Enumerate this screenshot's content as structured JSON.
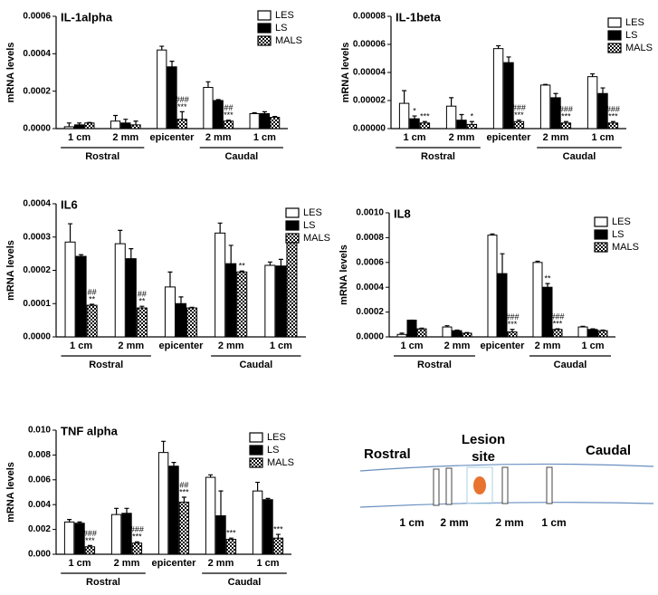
{
  "chart_data": [
    {
      "type": "bar",
      "title": "IL-1alpha",
      "y_label": "mRNA levels",
      "categories": [
        "1 cm",
        "2 mm",
        "epicenter",
        "2 mm",
        "1 cm"
      ],
      "x_groups": [
        "Rostral",
        "Caudal"
      ],
      "ylim": [
        0,
        0.0006
      ],
      "yticks": [
        {
          "value": 0,
          "label": "0.0000"
        },
        {
          "value": 0.0002,
          "label": "0.0002"
        },
        {
          "value": 0.0004,
          "label": "0.0004"
        },
        {
          "value": 0.0006,
          "label": "0.0006"
        }
      ],
      "legend": "upper right",
      "series": [
        {
          "name": "LES",
          "color": "#ffffff",
          "values": [
            1e-05,
            4e-05,
            0.00042,
            0.00022,
            8e-05
          ],
          "errors": [
            2e-05,
            3e-05,
            2e-05,
            3e-05,
            5e-06
          ],
          "annotations": [
            null,
            null,
            null,
            null,
            null
          ]
        },
        {
          "name": "LS",
          "color": "#000000",
          "values": [
            2e-05,
            3e-05,
            0.00033,
            0.00015,
            8e-05
          ],
          "errors": [
            1e-05,
            2e-05,
            3e-05,
            5e-06,
            1e-05
          ],
          "annotations": [
            null,
            null,
            null,
            null,
            null
          ]
        },
        {
          "name": "MALS",
          "color": "#000000",
          "pattern": "checker",
          "values": [
            3e-05,
            2e-05,
            5e-05,
            4e-05,
            6e-05
          ],
          "errors": [
            3e-06,
            2e-05,
            4e-05,
            5e-06,
            5e-06
          ],
          "annotations": [
            null,
            null,
            [
              "###",
              "***"
            ],
            [
              "##",
              "***"
            ],
            null
          ]
        }
      ]
    },
    {
      "type": "bar",
      "title": "IL-1beta",
      "y_label": "mRNA levels",
      "categories": [
        "1 cm",
        "2 mm",
        "epicenter",
        "2 mm",
        "1 cm"
      ],
      "x_groups": [
        "Rostral",
        "Caudal"
      ],
      "ylim": [
        0,
        8e-05
      ],
      "yticks": [
        {
          "value": 0,
          "label": "0.00000"
        },
        {
          "value": 2e-05,
          "label": "0.00002"
        },
        {
          "value": 4e-05,
          "label": "0.00004"
        },
        {
          "value": 6e-05,
          "label": "0.00006"
        },
        {
          "value": 8e-05,
          "label": "0.00008"
        }
      ],
      "legend": "upper right",
      "series": [
        {
          "name": "LES",
          "color": "#ffffff",
          "values": [
            1.8e-05,
            1.6e-05,
            5.7e-05,
            3.1e-05,
            3.7e-05
          ],
          "errors": [
            9e-06,
            6e-06,
            2e-06,
            5e-07,
            2e-06
          ],
          "annotations": [
            null,
            null,
            null,
            null,
            null
          ]
        },
        {
          "name": "LS",
          "color": "#000000",
          "values": [
            7e-06,
            6e-06,
            4.7e-05,
            2.2e-05,
            2.5e-05
          ],
          "errors": [
            2e-06,
            4e-06,
            4e-06,
            3e-06,
            4e-06
          ],
          "annotations": [
            "*",
            null,
            null,
            null,
            null
          ]
        },
        {
          "name": "MALS",
          "color": "#000000",
          "pattern": "checker",
          "values": [
            4e-06,
            3e-06,
            5e-06,
            4e-06,
            4e-06
          ],
          "errors": [
            1e-06,
            2e-06,
            1e-06,
            1e-06,
            1e-06
          ],
          "annotations": [
            "***",
            "*",
            [
              "###",
              "***"
            ],
            [
              "###",
              "***"
            ],
            [
              "###",
              "***"
            ]
          ]
        }
      ]
    },
    {
      "type": "bar",
      "title": "IL6",
      "y_label": "mRNA levels",
      "categories": [
        "1 cm",
        "2 mm",
        "epicenter",
        "2 mm",
        "1 cm"
      ],
      "x_groups": [
        "Rostral",
        "Caudal"
      ],
      "ylim": [
        0,
        0.0004
      ],
      "yticks": [
        {
          "value": 0,
          "label": "0.0000"
        },
        {
          "value": 0.0001,
          "label": "0.0001"
        },
        {
          "value": 0.0002,
          "label": "0.0002"
        },
        {
          "value": 0.0003,
          "label": "0.0003"
        },
        {
          "value": 0.0004,
          "label": "0.0004"
        }
      ],
      "legend": "upper right",
      "series": [
        {
          "name": "LES",
          "color": "#ffffff",
          "values": [
            0.000285,
            0.00028,
            0.00015,
            0.000312,
            0.000215
          ],
          "errors": [
            5.5e-05,
            4e-05,
            4.5e-05,
            3e-05,
            1e-05
          ],
          "annotations": [
            null,
            null,
            null,
            null,
            null
          ]
        },
        {
          "name": "LS",
          "color": "#000000",
          "values": [
            0.000242,
            0.000235,
            0.0001,
            0.00022,
            0.000213
          ],
          "errors": [
            5e-06,
            3e-05,
            2e-05,
            5.5e-05,
            2e-05
          ],
          "annotations": [
            null,
            null,
            null,
            null,
            null
          ]
        },
        {
          "name": "MALS",
          "color": "#000000",
          "pattern": "checker",
          "values": [
            9.5e-05,
            8.7e-05,
            8.7e-05,
            0.000195,
            0.000285
          ],
          "errors": [
            3e-06,
            5e-06,
            2e-06,
            3e-06,
            2.5e-05
          ],
          "annotations": [
            [
              "##",
              "**"
            ],
            [
              "##",
              "**"
            ],
            null,
            "**",
            null
          ]
        }
      ]
    },
    {
      "type": "bar",
      "title": "IL8",
      "y_label": "mRNA levels",
      "categories": [
        "1 cm",
        "2 mm",
        "epicenter",
        "2 mm",
        "1 cm"
      ],
      "x_groups": [
        "Rostral",
        "Caudal"
      ],
      "ylim": [
        0,
        0.001
      ],
      "yticks": [
        {
          "value": 0,
          "label": "0.0000"
        },
        {
          "value": 0.0002,
          "label": "0.0002"
        },
        {
          "value": 0.0004,
          "label": "0.0004"
        },
        {
          "value": 0.0006,
          "label": "0.0006"
        },
        {
          "value": 0.0008,
          "label": "0.0008"
        },
        {
          "value": 0.001,
          "label": "0.0010"
        }
      ],
      "legend": "upper right",
      "series": [
        {
          "name": "LES",
          "color": "#ffffff",
          "values": [
            2e-05,
            8e-05,
            0.00082,
            0.0006,
            8e-05
          ],
          "errors": [
            1e-05,
            1e-05,
            1e-05,
            1e-05,
            5e-06
          ],
          "annotations": [
            null,
            null,
            null,
            null,
            null
          ]
        },
        {
          "name": "LS",
          "color": "#000000",
          "values": [
            0.000135,
            5e-05,
            0.00051,
            0.0004,
            6e-05
          ],
          "errors": [
            0,
            5e-06,
            0.00016,
            3e-05,
            5e-06
          ],
          "annotations": [
            null,
            null,
            null,
            "**",
            null
          ]
        },
        {
          "name": "MALS",
          "color": "#000000",
          "pattern": "checker",
          "values": [
            6.5e-05,
            3e-05,
            4e-05,
            6e-05,
            5e-05
          ],
          "errors": [
            5e-06,
            5e-06,
            2e-05,
            5e-06,
            5e-06
          ],
          "annotations": [
            null,
            null,
            [
              "###",
              "***"
            ],
            [
              "###",
              "***"
            ],
            null
          ]
        }
      ]
    },
    {
      "type": "bar",
      "title": "TNF alpha",
      "y_label": "mRNA levels",
      "categories": [
        "1 cm",
        "2 mm",
        "epicenter",
        "2 mm",
        "1 cm"
      ],
      "x_groups": [
        "Rostral",
        "Caudal"
      ],
      "ylim": [
        0,
        0.01
      ],
      "yticks": [
        {
          "value": 0,
          "label": "0.000"
        },
        {
          "value": 0.002,
          "label": "0.002"
        },
        {
          "value": 0.004,
          "label": "0.004"
        },
        {
          "value": 0.006,
          "label": "0.006"
        },
        {
          "value": 0.008,
          "label": "0.008"
        },
        {
          "value": 0.01,
          "label": "0.010"
        }
      ],
      "legend": "upper right",
      "series": [
        {
          "name": "LES",
          "color": "#ffffff",
          "values": [
            0.0026,
            0.0032,
            0.0082,
            0.0062,
            0.0051
          ],
          "errors": [
            0.0002,
            0.0005,
            0.0009,
            0.0002,
            0.0007
          ],
          "annotations": [
            null,
            null,
            null,
            null,
            null
          ]
        },
        {
          "name": "LS",
          "color": "#000000",
          "values": [
            0.0025,
            0.0033,
            0.0071,
            0.0031,
            0.0044
          ],
          "errors": [
            0.0001,
            0.0004,
            0.0003,
            0.002,
            0.0001
          ],
          "annotations": [
            null,
            null,
            null,
            null,
            null
          ]
        },
        {
          "name": "MALS",
          "color": "#000000",
          "pattern": "checker",
          "values": [
            0.0006,
            0.0009,
            0.0042,
            0.0012,
            0.0013
          ],
          "errors": [
            0.0001,
            0.0001,
            0.0004,
            0.0001,
            0.0003
          ],
          "annotations": [
            [
              "###",
              "***"
            ],
            [
              "###",
              "***"
            ],
            [
              "##",
              "***"
            ],
            "***",
            "***"
          ]
        }
      ]
    }
  ],
  "diagram": {
    "left_label": "Rostral",
    "center_label": [
      "Lesion",
      "site"
    ],
    "right_label": "Caudal",
    "positions": [
      "1 cm",
      "2 mm",
      "2 mm",
      "1 cm"
    ]
  }
}
